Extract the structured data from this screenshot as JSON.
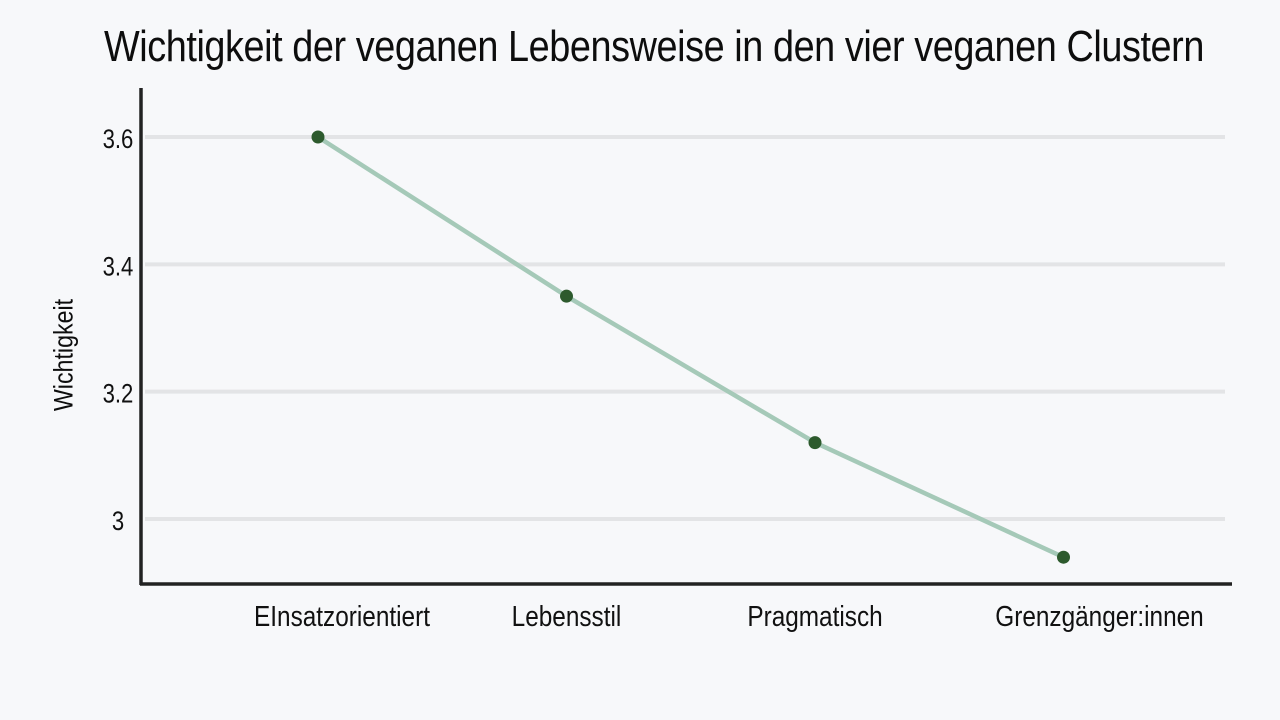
{
  "chart_data": {
    "type": "line",
    "title": "Wichtigkeit der veganen Lebensweise in den vier veganen Clustern",
    "xlabel": "",
    "ylabel": "Wichtigkeit",
    "categories": [
      "EInsatzorientiert",
      "Lebensstil",
      "Pragmatisch",
      "Grenzgänger:innen"
    ],
    "series": [
      {
        "values": [
          3.6,
          3.35,
          3.12,
          2.94
        ]
      }
    ],
    "yticks": [
      "3",
      "3.2",
      "3.4",
      "3.6"
    ],
    "ytick_values": [
      3.0,
      3.2,
      3.4,
      3.6
    ],
    "ylim": [
      2.9,
      3.68
    ],
    "grid": true,
    "legend": "none",
    "colors": {
      "line": "#a5c9b8",
      "marker": "#2d5a2d",
      "axis": "#222222",
      "grid": "#e3e4e6"
    }
  }
}
